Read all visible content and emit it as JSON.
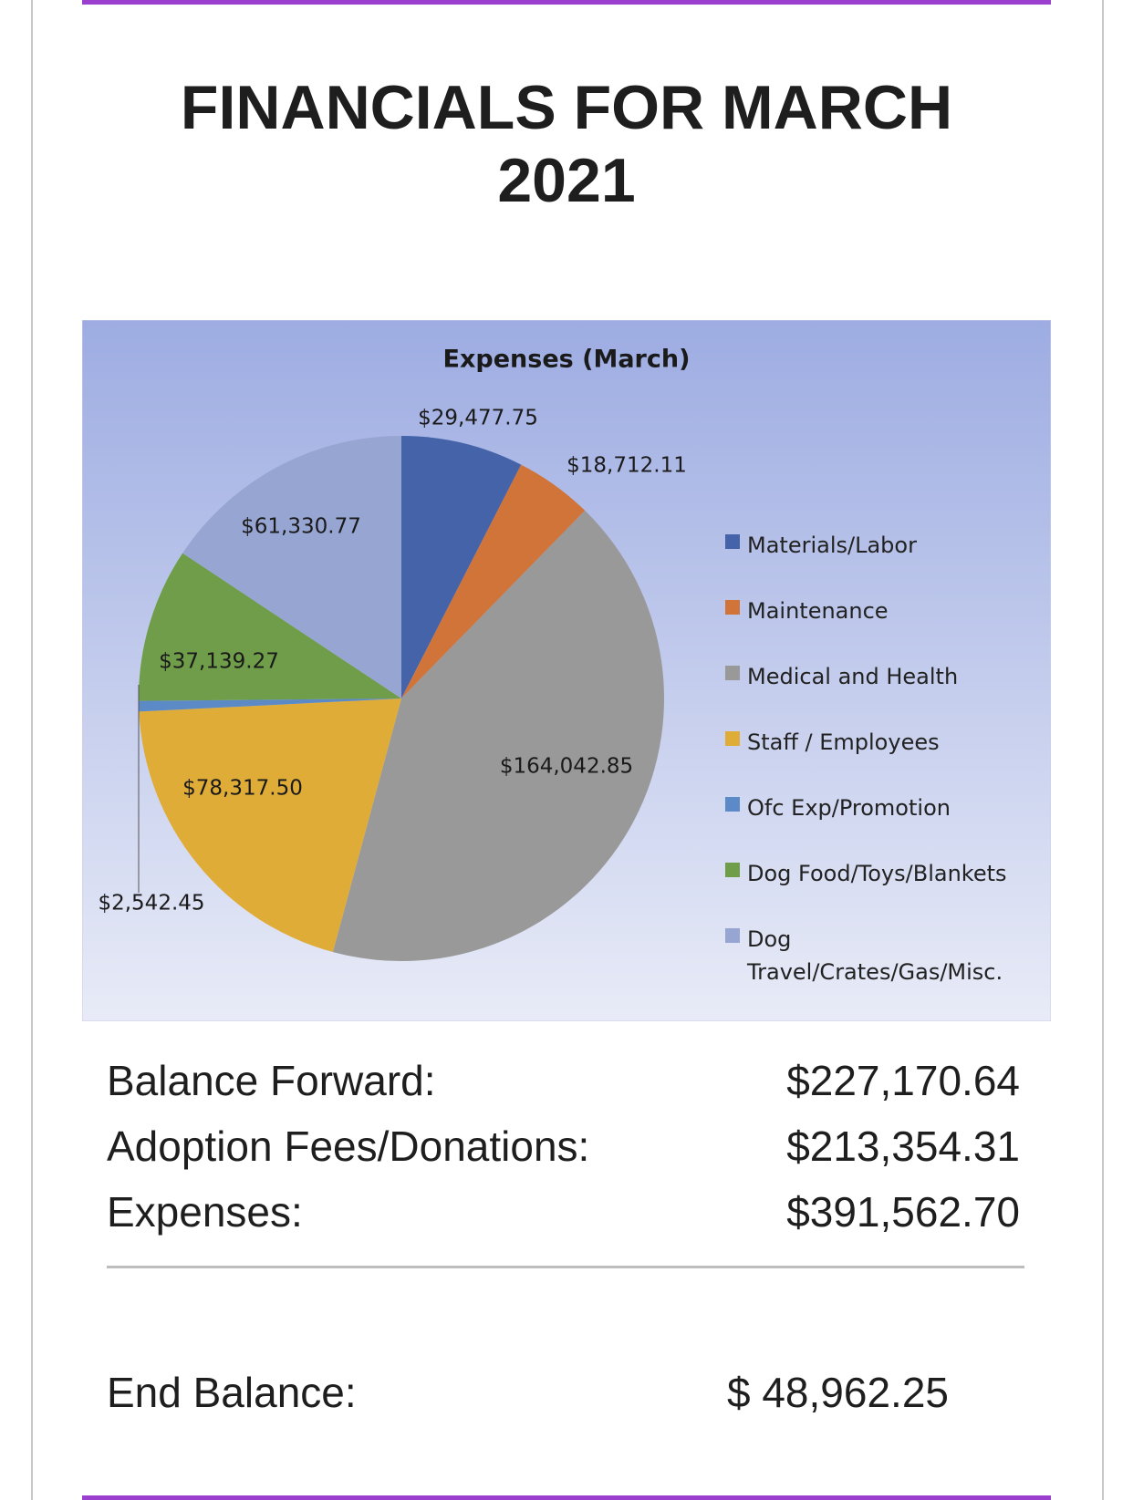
{
  "header": {
    "title": "FINANCIALS FOR MARCH 2021"
  },
  "chart_data": {
    "type": "pie",
    "title": "Expenses  (March)",
    "categories": [
      "Materials/Labor",
      "Maintenance",
      "Medical and Health",
      "Staff / Employees",
      "Ofc Exp/Promotion",
      "Dog Food/Toys/Blankets",
      "Dog Travel/Crates/Gas/Misc."
    ],
    "values": [
      29477.75,
      18712.11,
      164042.85,
      78317.5,
      2542.45,
      37139.27,
      61330.77
    ],
    "value_labels": [
      "$29,477.75",
      "$18,712.11",
      "$164,042.85",
      "$78,317.50",
      "$2,542.45",
      "$37,139.27",
      "$61,330.77"
    ],
    "colors": [
      "#4463a8",
      "#d0743a",
      "#999999",
      "#e0ac38",
      "#5b8ac6",
      "#6f9d4a",
      "#97a5d3"
    ],
    "legend": "right"
  },
  "summary": {
    "rows": [
      [
        "Balance Forward:",
        "$227,170.64"
      ],
      [
        "Adoption Fees/Donations:",
        "$213,354.31"
      ],
      [
        "Expenses:",
        "$391,562.70"
      ]
    ],
    "end": [
      "End Balance:",
      "$ 48,962.25"
    ]
  }
}
